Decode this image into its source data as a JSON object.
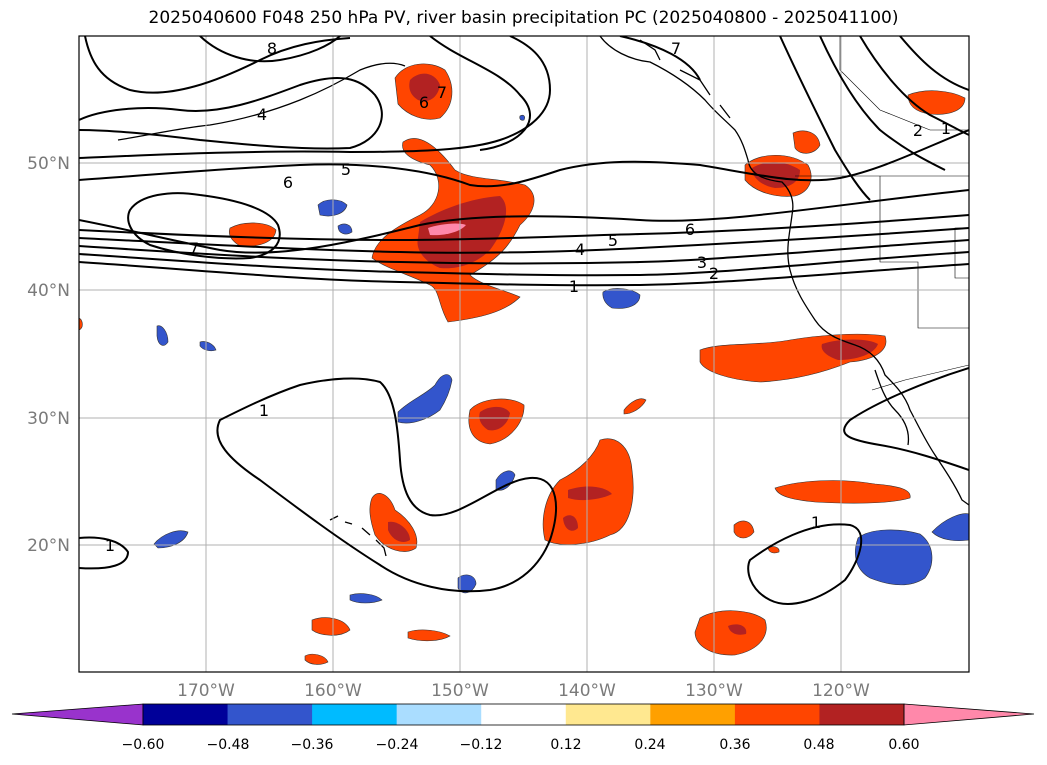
{
  "title": "2025040600 F048 250 hPa PV, river basin precipitation PC (2025040800 - 2025041100)",
  "map": {
    "lon_range": [
      -180,
      -110
    ],
    "lat_range": [
      10,
      60
    ],
    "gridlines": true
  },
  "lat_labels": [
    "20°N",
    "30°N",
    "40°N",
    "50°N"
  ],
  "lon_labels": [
    "170°W",
    "160°W",
    "150°W",
    "140°W",
    "130°W",
    "120°W"
  ],
  "contour_labels": [
    "8",
    "7",
    "4",
    "6",
    "7",
    "5",
    "6",
    "7",
    "6",
    "5",
    "4",
    "3",
    "2",
    "1",
    "2",
    "1",
    "1",
    "1",
    "1"
  ],
  "colorbar": {
    "ticks": [
      "−0.60",
      "−0.48",
      "−0.36",
      "−0.24",
      "−0.12",
      "0.12",
      "0.24",
      "0.36",
      "0.48",
      "0.60"
    ],
    "colors": [
      "#9933cc",
      "#000099",
      "#3355cc",
      "#00bbff",
      "#aaddff",
      "#ffffff",
      "#ffe890",
      "#ffa000",
      "#ff4500",
      "#b22222",
      "#ff88aa"
    ]
  }
}
